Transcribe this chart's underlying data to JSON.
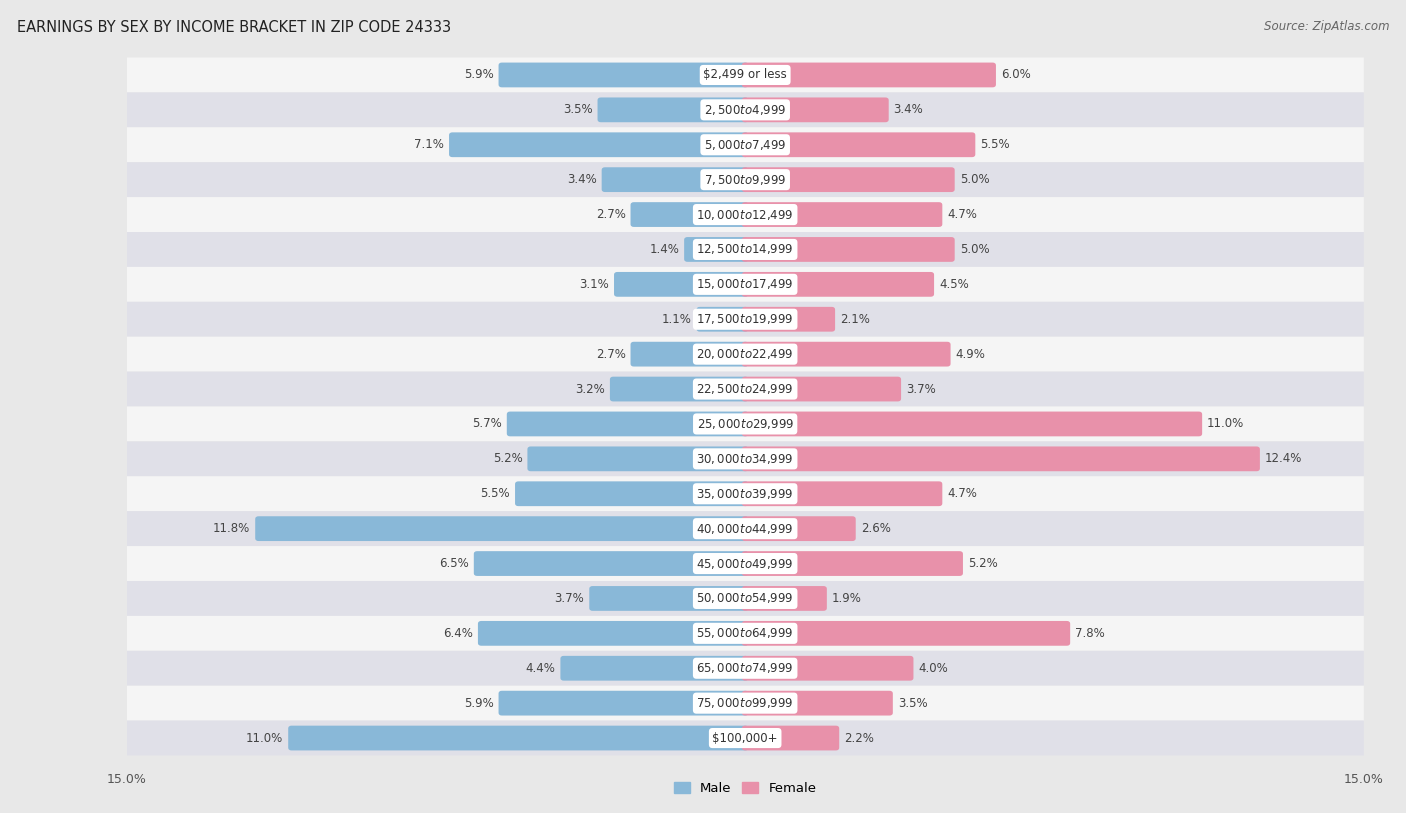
{
  "title": "EARNINGS BY SEX BY INCOME BRACKET IN ZIP CODE 24333",
  "source": "Source: ZipAtlas.com",
  "categories": [
    "$2,499 or less",
    "$2,500 to $4,999",
    "$5,000 to $7,499",
    "$7,500 to $9,999",
    "$10,000 to $12,499",
    "$12,500 to $14,999",
    "$15,000 to $17,499",
    "$17,500 to $19,999",
    "$20,000 to $22,499",
    "$22,500 to $24,999",
    "$25,000 to $29,999",
    "$30,000 to $34,999",
    "$35,000 to $39,999",
    "$40,000 to $44,999",
    "$45,000 to $49,999",
    "$50,000 to $54,999",
    "$55,000 to $64,999",
    "$65,000 to $74,999",
    "$75,000 to $99,999",
    "$100,000+"
  ],
  "male_values": [
    5.9,
    3.5,
    7.1,
    3.4,
    2.7,
    1.4,
    3.1,
    1.1,
    2.7,
    3.2,
    5.7,
    5.2,
    5.5,
    11.8,
    6.5,
    3.7,
    6.4,
    4.4,
    5.9,
    11.0
  ],
  "female_values": [
    6.0,
    3.4,
    5.5,
    5.0,
    4.7,
    5.0,
    4.5,
    2.1,
    4.9,
    3.7,
    11.0,
    12.4,
    4.7,
    2.6,
    5.2,
    1.9,
    7.8,
    4.0,
    3.5,
    2.2
  ],
  "male_color": "#89b8d8",
  "female_color": "#e891aa",
  "male_label": "Male",
  "female_label": "Female",
  "xlim": 15.0,
  "bg_color": "#e8e8e8",
  "row_color_even": "#f5f5f5",
  "row_color_odd": "#e0e0e8",
  "title_fontsize": 10.5,
  "tick_fontsize": 9,
  "label_fontsize": 8.5,
  "cat_fontsize": 8.5,
  "source_fontsize": 8.5
}
